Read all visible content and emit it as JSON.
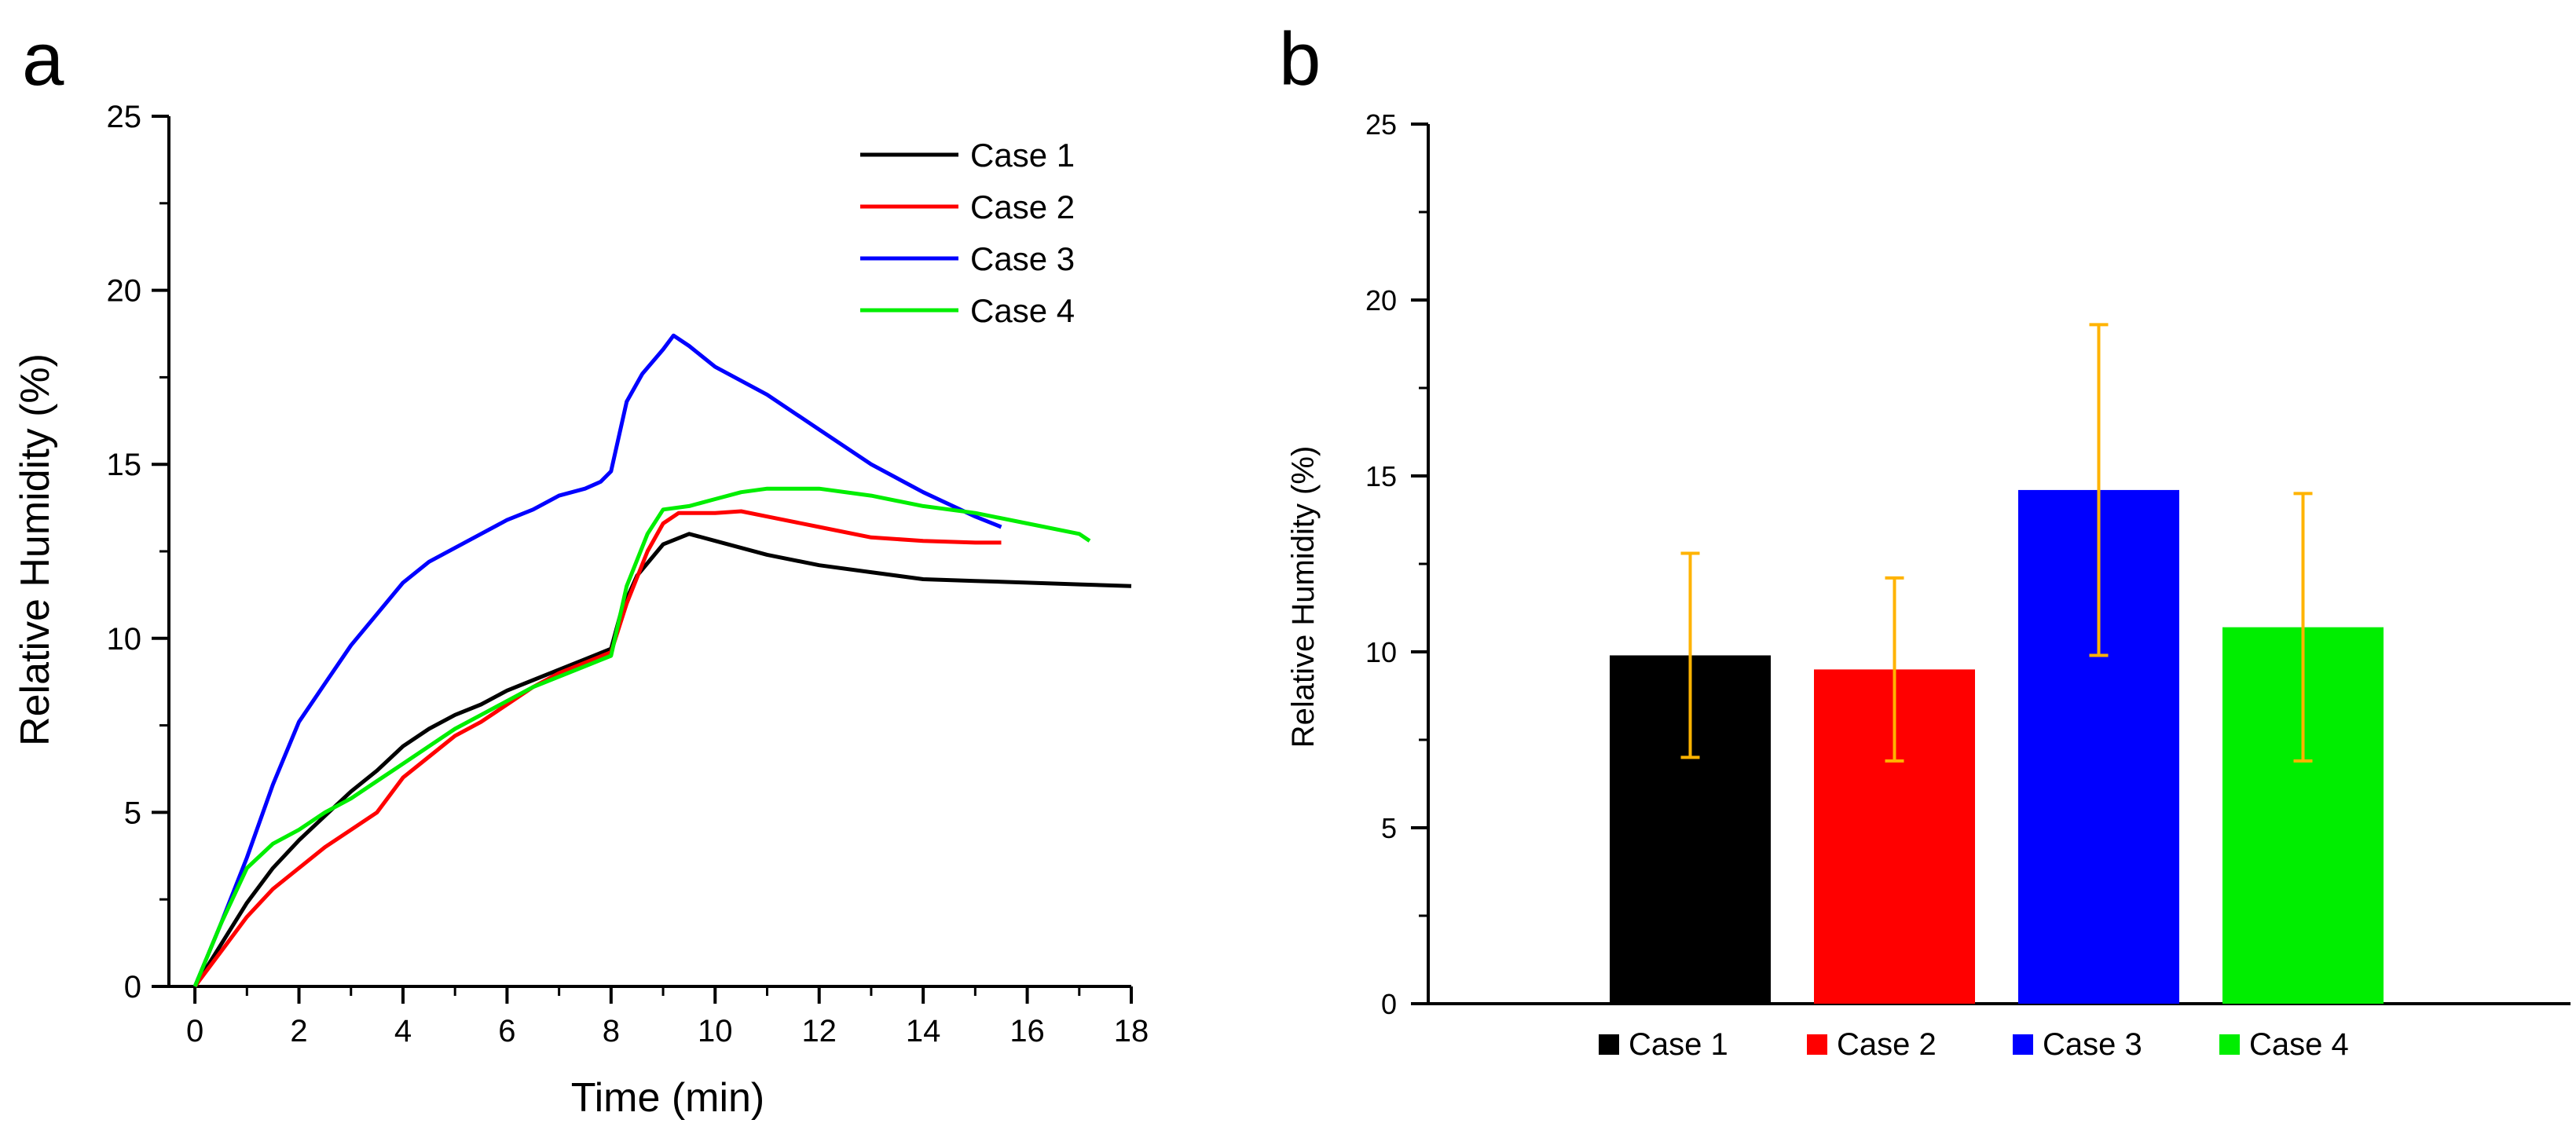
{
  "chart_data": [
    {
      "panel": "a",
      "type": "line",
      "xlabel": "Time (min)",
      "ylabel": "Relative Humidity (%)",
      "xlim": [
        -0.5,
        18
      ],
      "ylim": [
        0,
        25
      ],
      "xticks": [
        "0",
        "2",
        "4",
        "6",
        "8",
        "10",
        "12",
        "14",
        "16",
        "18"
      ],
      "yticks": [
        "0",
        "5",
        "10",
        "15",
        "20",
        "25"
      ],
      "grid": false,
      "legend_position": "top-right",
      "series": [
        {
          "name": "Case 1",
          "color": "#000000",
          "x": [
            0,
            0.5,
            1,
            1.5,
            2,
            2.5,
            3,
            3.5,
            4,
            4.5,
            5,
            5.5,
            6,
            6.5,
            7,
            7.5,
            8,
            8.2,
            8.5,
            9,
            9.5,
            10,
            10.5,
            11,
            12,
            13,
            14,
            15,
            16,
            17,
            18
          ],
          "y": [
            0,
            1.2,
            2.4,
            3.4,
            4.2,
            4.9,
            5.6,
            6.2,
            6.9,
            7.4,
            7.8,
            8.1,
            8.5,
            8.8,
            9.1,
            9.4,
            9.7,
            10.8,
            11.8,
            12.7,
            13.0,
            12.8,
            12.6,
            12.4,
            12.1,
            11.9,
            11.7,
            11.65,
            11.6,
            11.55,
            11.5
          ]
        },
        {
          "name": "Case 2",
          "color": "#ff0000",
          "x": [
            0,
            0.5,
            1,
            1.5,
            2,
            2.5,
            3,
            3.5,
            4,
            4.5,
            5,
            5.5,
            6,
            6.5,
            7,
            7.5,
            8,
            8.3,
            8.7,
            9,
            9.3,
            10,
            10.5,
            11,
            12,
            13,
            14,
            15,
            15.5
          ],
          "y": [
            0,
            1.0,
            2.0,
            2.8,
            3.4,
            4.0,
            4.5,
            5.0,
            6.0,
            6.6,
            7.2,
            7.6,
            8.1,
            8.6,
            9.0,
            9.3,
            9.6,
            11.0,
            12.5,
            13.3,
            13.6,
            13.6,
            13.65,
            13.5,
            13.2,
            12.9,
            12.8,
            12.75,
            12.75
          ]
        },
        {
          "name": "Case 3",
          "color": "#0000ff",
          "x": [
            0,
            0.5,
            1,
            1.5,
            2,
            2.5,
            3,
            3.5,
            4,
            4.5,
            5,
            5.5,
            6,
            6.5,
            7,
            7.5,
            7.8,
            8,
            8.3,
            8.6,
            9,
            9.2,
            9.5,
            10,
            11,
            12,
            13,
            14,
            15,
            15.5
          ],
          "y": [
            0,
            1.8,
            3.7,
            5.8,
            7.6,
            8.7,
            9.8,
            10.7,
            11.6,
            12.2,
            12.6,
            13.0,
            13.4,
            13.7,
            14.1,
            14.3,
            14.5,
            14.8,
            16.8,
            17.6,
            18.3,
            18.7,
            18.4,
            17.8,
            17.0,
            16.0,
            15.0,
            14.2,
            13.5,
            13.2
          ]
        },
        {
          "name": "Case 4",
          "color": "#00ee00",
          "x": [
            0,
            0.5,
            1,
            1.5,
            2,
            2.5,
            3,
            3.5,
            4,
            4.5,
            5,
            5.5,
            6,
            6.5,
            7,
            7.5,
            8,
            8.3,
            8.7,
            9,
            9.5,
            10,
            10.5,
            11,
            12,
            13,
            14,
            15,
            16,
            17,
            17.2
          ],
          "y": [
            0,
            1.8,
            3.4,
            4.1,
            4.5,
            5.0,
            5.4,
            5.9,
            6.4,
            6.9,
            7.4,
            7.8,
            8.2,
            8.6,
            8.9,
            9.2,
            9.5,
            11.5,
            13.0,
            13.7,
            13.8,
            14.0,
            14.2,
            14.3,
            14.3,
            14.1,
            13.8,
            13.6,
            13.3,
            13.0,
            12.8
          ]
        }
      ]
    },
    {
      "panel": "b",
      "type": "bar",
      "ylabel": "Relative Humidity (%)",
      "ylim": [
        0,
        25
      ],
      "yticks": [
        "0",
        "5",
        "10",
        "15",
        "20",
        "25"
      ],
      "grid": false,
      "legend_position": "bottom",
      "categories": [
        "Case 1",
        "Case 2",
        "Case 3",
        "Case 4"
      ],
      "values": [
        9.9,
        9.5,
        14.6,
        10.7
      ],
      "error_low": [
        7.0,
        6.9,
        9.9,
        6.9
      ],
      "error_high": [
        12.8,
        12.1,
        19.3,
        14.5
      ],
      "colors": [
        "#000000",
        "#ff0000",
        "#0000ff",
        "#00ee00"
      ],
      "error_bar_color": "#ffb300"
    }
  ],
  "panel_labels": [
    "a",
    "b"
  ]
}
